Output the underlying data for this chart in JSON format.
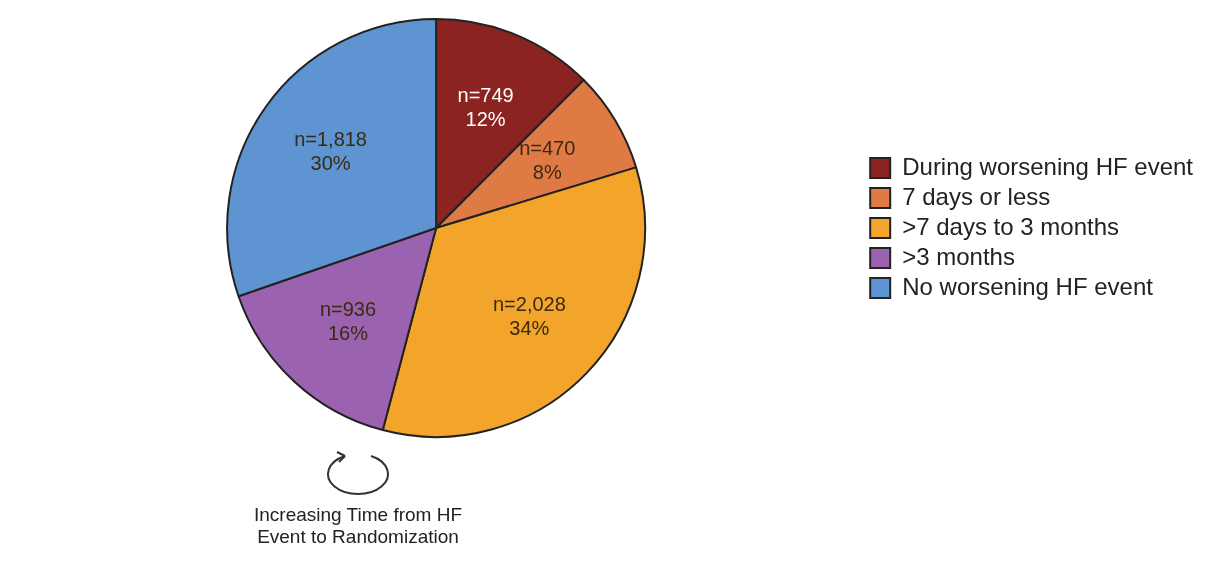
{
  "chart_data": {
    "type": "pie",
    "categories": [
      "During worsening HF event",
      "7 days or less",
      ">7 days to 3 months",
      ">3 months",
      "No worsening HF event"
    ],
    "values": [
      749,
      470,
      2028,
      936,
      1818
    ],
    "value_labels": [
      "n=749\n12%",
      "n=470\n8%",
      "n=2,028\n34%",
      "n=936\n16%",
      "n=1,818\n30%"
    ],
    "colors": [
      "#8b2320",
      "#e07a45",
      "#f2a52a",
      "#9b62b0",
      "#5e94d2"
    ],
    "legend": "right",
    "annotations": [
      "Increasing Time from HF Event to Randomization"
    ]
  }
}
